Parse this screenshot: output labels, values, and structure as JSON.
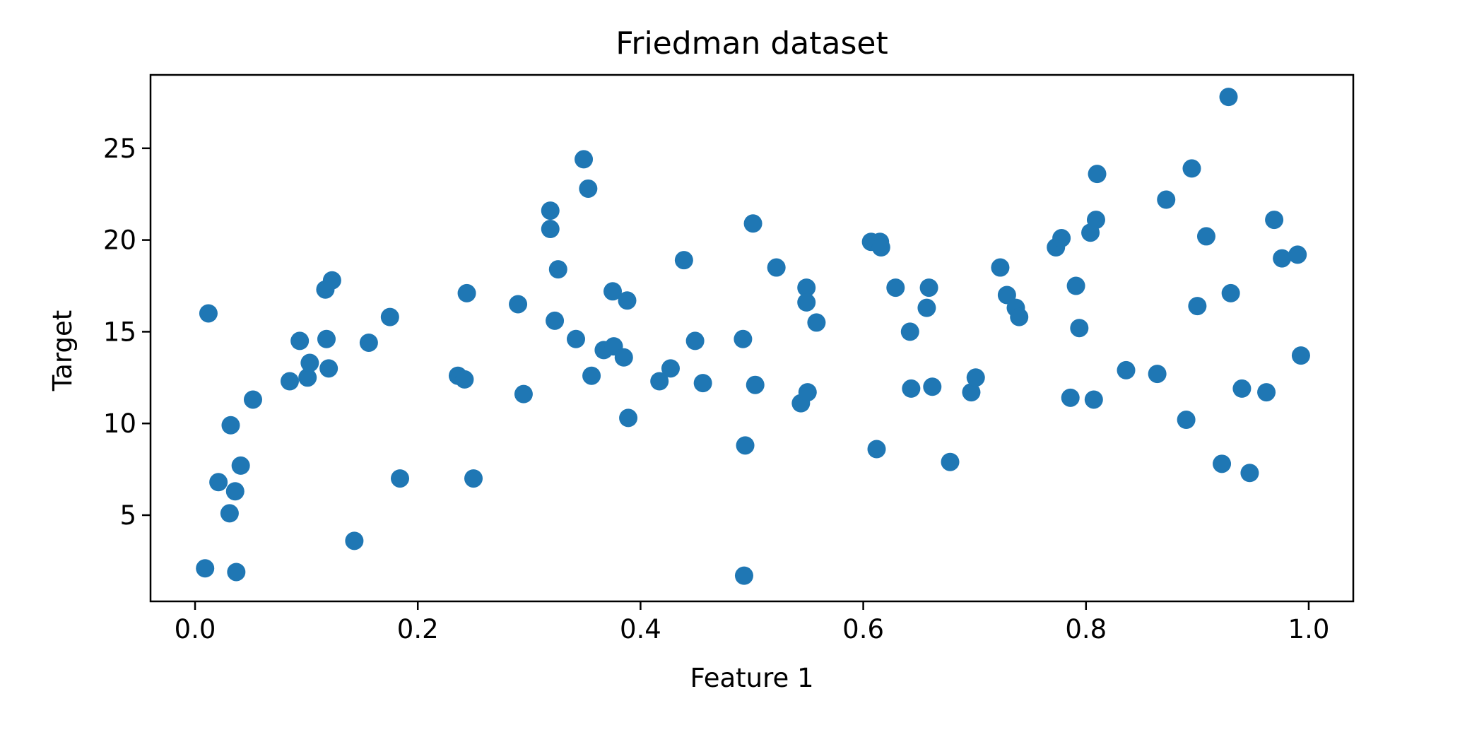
{
  "chart_data": {
    "type": "scatter",
    "title": "Friedman dataset",
    "xlabel": "Feature 1",
    "ylabel": "Target",
    "xlim": [
      -0.04,
      1.04
    ],
    "ylim": [
      0.3,
      29.0
    ],
    "xticks": [
      0.0,
      0.2,
      0.4,
      0.6,
      0.8,
      1.0
    ],
    "xtick_labels": [
      "0.0",
      "0.2",
      "0.4",
      "0.6",
      "0.8",
      "1.0"
    ],
    "yticks": [
      5,
      10,
      15,
      20,
      25
    ],
    "ytick_labels": [
      "5",
      "10",
      "15",
      "20",
      "25"
    ],
    "grid": false,
    "marker_color": "#1f77b4",
    "points": [
      [
        0.009,
        2.1
      ],
      [
        0.012,
        16.0
      ],
      [
        0.021,
        6.8
      ],
      [
        0.031,
        5.1
      ],
      [
        0.032,
        9.9
      ],
      [
        0.036,
        6.3
      ],
      [
        0.037,
        1.9
      ],
      [
        0.041,
        7.7
      ],
      [
        0.052,
        11.3
      ],
      [
        0.085,
        12.3
      ],
      [
        0.094,
        14.5
      ],
      [
        0.101,
        12.5
      ],
      [
        0.103,
        13.3
      ],
      [
        0.117,
        17.3
      ],
      [
        0.118,
        14.6
      ],
      [
        0.12,
        13.0
      ],
      [
        0.123,
        17.8
      ],
      [
        0.143,
        3.6
      ],
      [
        0.156,
        14.4
      ],
      [
        0.175,
        15.8
      ],
      [
        0.184,
        7.0
      ],
      [
        0.236,
        12.6
      ],
      [
        0.242,
        12.4
      ],
      [
        0.244,
        17.1
      ],
      [
        0.25,
        7.0
      ],
      [
        0.29,
        16.5
      ],
      [
        0.295,
        11.6
      ],
      [
        0.319,
        21.6
      ],
      [
        0.319,
        20.6
      ],
      [
        0.323,
        15.6
      ],
      [
        0.326,
        18.4
      ],
      [
        0.342,
        14.6
      ],
      [
        0.349,
        24.4
      ],
      [
        0.353,
        22.8
      ],
      [
        0.356,
        12.6
      ],
      [
        0.367,
        14.0
      ],
      [
        0.375,
        17.2
      ],
      [
        0.376,
        14.2
      ],
      [
        0.385,
        13.6
      ],
      [
        0.388,
        16.7
      ],
      [
        0.389,
        10.3
      ],
      [
        0.417,
        12.3
      ],
      [
        0.427,
        13.0
      ],
      [
        0.439,
        18.9
      ],
      [
        0.449,
        14.5
      ],
      [
        0.456,
        12.2
      ],
      [
        0.492,
        14.6
      ],
      [
        0.493,
        1.7
      ],
      [
        0.494,
        8.8
      ],
      [
        0.501,
        20.9
      ],
      [
        0.503,
        12.1
      ],
      [
        0.522,
        18.5
      ],
      [
        0.544,
        11.1
      ],
      [
        0.549,
        17.4
      ],
      [
        0.549,
        16.6
      ],
      [
        0.55,
        11.7
      ],
      [
        0.558,
        15.5
      ],
      [
        0.607,
        19.9
      ],
      [
        0.612,
        8.6
      ],
      [
        0.615,
        19.9
      ],
      [
        0.616,
        19.6
      ],
      [
        0.629,
        17.4
      ],
      [
        0.642,
        15.0
      ],
      [
        0.643,
        11.9
      ],
      [
        0.657,
        16.3
      ],
      [
        0.659,
        17.4
      ],
      [
        0.662,
        12.0
      ],
      [
        0.678,
        7.9
      ],
      [
        0.697,
        11.7
      ],
      [
        0.701,
        12.5
      ],
      [
        0.723,
        18.5
      ],
      [
        0.729,
        17.0
      ],
      [
        0.737,
        16.3
      ],
      [
        0.74,
        15.8
      ],
      [
        0.773,
        19.6
      ],
      [
        0.778,
        20.1
      ],
      [
        0.786,
        11.4
      ],
      [
        0.791,
        17.5
      ],
      [
        0.794,
        15.2
      ],
      [
        0.804,
        20.4
      ],
      [
        0.807,
        11.3
      ],
      [
        0.809,
        21.1
      ],
      [
        0.81,
        23.6
      ],
      [
        0.836,
        12.9
      ],
      [
        0.864,
        12.7
      ],
      [
        0.872,
        22.2
      ],
      [
        0.89,
        10.2
      ],
      [
        0.895,
        23.9
      ],
      [
        0.9,
        16.4
      ],
      [
        0.908,
        20.2
      ],
      [
        0.922,
        7.8
      ],
      [
        0.928,
        27.8
      ],
      [
        0.93,
        17.1
      ],
      [
        0.94,
        11.9
      ],
      [
        0.947,
        7.3
      ],
      [
        0.962,
        11.7
      ],
      [
        0.969,
        21.1
      ],
      [
        0.976,
        19.0
      ],
      [
        0.99,
        19.2
      ],
      [
        0.993,
        13.7
      ]
    ]
  }
}
